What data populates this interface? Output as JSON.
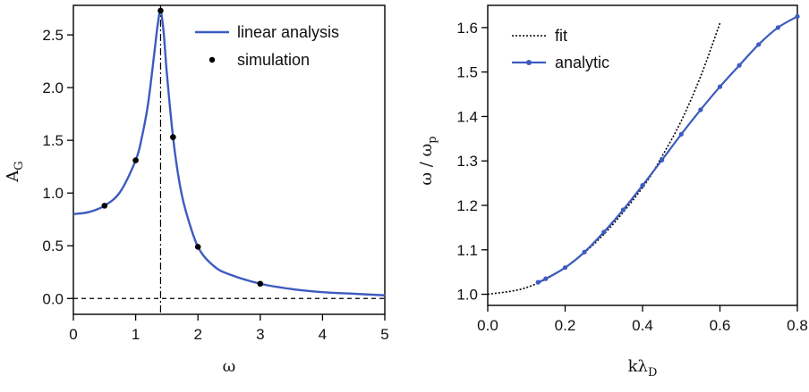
{
  "chart_data": [
    {
      "type": "line",
      "ylabel": "A",
      "ylabel_sub": "G",
      "xlabel": "ω",
      "xlim": [
        0,
        5
      ],
      "ylim": [
        -0.15,
        2.78
      ],
      "xticks": [
        "0",
        "1",
        "2",
        "3",
        "4",
        "5"
      ],
      "yticks": [
        "0.0",
        "0.5",
        "1.0",
        "1.5",
        "2.0",
        "2.5"
      ],
      "legend_position": "top-right",
      "resonance_omega": 1.4,
      "series": [
        {
          "name": "linear analysis",
          "style": "solid line",
          "color": "#3d5bbf",
          "x": [
            0.0,
            0.25,
            0.5,
            0.75,
            1.0,
            1.1,
            1.2,
            1.3,
            1.35,
            1.4,
            1.45,
            1.5,
            1.6,
            1.7,
            1.8,
            2.0,
            2.25,
            2.5,
            3.0,
            3.5,
            4.0,
            4.5,
            5.0
          ],
          "y": [
            0.8,
            0.82,
            0.88,
            1.01,
            1.31,
            1.53,
            1.85,
            2.33,
            2.58,
            2.73,
            2.52,
            2.14,
            1.53,
            1.11,
            0.84,
            0.49,
            0.31,
            0.23,
            0.14,
            0.09,
            0.06,
            0.045,
            0.03
          ]
        },
        {
          "name": "simulation",
          "style": "markers",
          "color": "#000000",
          "x": [
            0.5,
            1.0,
            1.4,
            1.6,
            2.0,
            3.0
          ],
          "y": [
            0.88,
            1.31,
            2.73,
            1.53,
            0.49,
            0.14
          ]
        }
      ]
    },
    {
      "type": "line",
      "ylabel": "ω / ω",
      "ylabel_sub": "p",
      "xlabel": "kλ",
      "xlabel_sub": "D",
      "xlim": [
        0,
        0.8
      ],
      "ylim": [
        0.975,
        1.65
      ],
      "xticks": [
        "0.0",
        "0.2",
        "0.4",
        "0.6",
        "0.8"
      ],
      "yticks": [
        "1.0",
        "1.1",
        "1.2",
        "1.3",
        "1.4",
        "1.5",
        "1.6"
      ],
      "legend_position": "top-left",
      "series": [
        {
          "name": "fit",
          "style": "dotted line",
          "color": "#000000",
          "x": [
            0.0,
            0.1,
            0.2,
            0.3,
            0.4,
            0.45,
            0.5,
            0.55,
            0.6
          ],
          "y": [
            1.0,
            1.015,
            1.06,
            1.135,
            1.24,
            1.31,
            1.39,
            1.49,
            1.61
          ]
        },
        {
          "name": "analytic",
          "style": "line with markers",
          "color": "#3d5bbf",
          "x": [
            0.13,
            0.15,
            0.2,
            0.25,
            0.3,
            0.35,
            0.4,
            0.45,
            0.5,
            0.55,
            0.6,
            0.65,
            0.7,
            0.75,
            0.8
          ],
          "y": [
            1.027,
            1.035,
            1.06,
            1.095,
            1.14,
            1.19,
            1.245,
            1.302,
            1.36,
            1.415,
            1.467,
            1.515,
            1.562,
            1.6,
            1.625
          ]
        }
      ]
    }
  ]
}
